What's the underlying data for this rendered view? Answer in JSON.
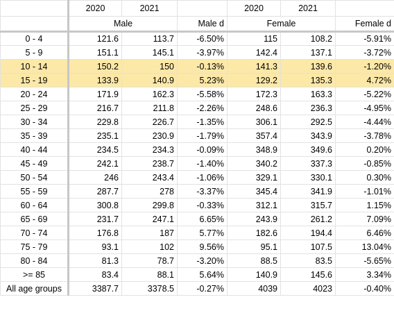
{
  "header_years": {
    "male_2020": "2020",
    "male_2021": "2021",
    "female_2020": "2020",
    "female_2021": "2021"
  },
  "header_groups": {
    "male": "Male",
    "male_d": "Male d",
    "female": "Female",
    "female_d": "Female d"
  },
  "colors": {
    "highlight": "#fce8a7",
    "gridline": "#e2e2e2",
    "frozen_border": "#c7c7c7"
  },
  "rows": [
    {
      "label": "0 - 4",
      "m2020": "121.6",
      "m2021": "113.7",
      "md": "-6.50%",
      "f2020": "115",
      "f2021": "108.2",
      "fd": "-5.91%",
      "highlight": false
    },
    {
      "label": "5 - 9",
      "m2020": "151.1",
      "m2021": "145.1",
      "md": "-3.97%",
      "f2020": "142.4",
      "f2021": "137.1",
      "fd": "-3.72%",
      "highlight": false
    },
    {
      "label": "10 - 14",
      "m2020": "150.2",
      "m2021": "150",
      "md": "-0.13%",
      "f2020": "141.3",
      "f2021": "139.6",
      "fd": "-1.20%",
      "highlight": true
    },
    {
      "label": "15 - 19",
      "m2020": "133.9",
      "m2021": "140.9",
      "md": "5.23%",
      "f2020": "129.2",
      "f2021": "135.3",
      "fd": "4.72%",
      "highlight": true
    },
    {
      "label": "20 - 24",
      "m2020": "171.9",
      "m2021": "162.3",
      "md": "-5.58%",
      "f2020": "172.3",
      "f2021": "163.3",
      "fd": "-5.22%",
      "highlight": false
    },
    {
      "label": "25 - 29",
      "m2020": "216.7",
      "m2021": "211.8",
      "md": "-2.26%",
      "f2020": "248.6",
      "f2021": "236.3",
      "fd": "-4.95%",
      "highlight": false
    },
    {
      "label": "30 - 34",
      "m2020": "229.8",
      "m2021": "226.7",
      "md": "-1.35%",
      "f2020": "306.1",
      "f2021": "292.5",
      "fd": "-4.44%",
      "highlight": false
    },
    {
      "label": "35 - 39",
      "m2020": "235.1",
      "m2021": "230.9",
      "md": "-1.79%",
      "f2020": "357.4",
      "f2021": "343.9",
      "fd": "-3.78%",
      "highlight": false
    },
    {
      "label": "40 - 44",
      "m2020": "234.5",
      "m2021": "234.3",
      "md": "-0.09%",
      "f2020": "348.9",
      "f2021": "349.6",
      "fd": "0.20%",
      "highlight": false
    },
    {
      "label": "45 - 49",
      "m2020": "242.1",
      "m2021": "238.7",
      "md": "-1.40%",
      "f2020": "340.2",
      "f2021": "337.3",
      "fd": "-0.85%",
      "highlight": false
    },
    {
      "label": "50 - 54",
      "m2020": "246",
      "m2021": "243.4",
      "md": "-1.06%",
      "f2020": "329.1",
      "f2021": "330.1",
      "fd": "0.30%",
      "highlight": false
    },
    {
      "label": "55 - 59",
      "m2020": "287.7",
      "m2021": "278",
      "md": "-3.37%",
      "f2020": "345.4",
      "f2021": "341.9",
      "fd": "-1.01%",
      "highlight": false
    },
    {
      "label": "60 - 64",
      "m2020": "300.8",
      "m2021": "299.8",
      "md": "-0.33%",
      "f2020": "312.1",
      "f2021": "315.7",
      "fd": "1.15%",
      "highlight": false
    },
    {
      "label": "65 - 69",
      "m2020": "231.7",
      "m2021": "247.1",
      "md": "6.65%",
      "f2020": "243.9",
      "f2021": "261.2",
      "fd": "7.09%",
      "highlight": false
    },
    {
      "label": "70 - 74",
      "m2020": "176.8",
      "m2021": "187",
      "md": "5.77%",
      "f2020": "182.6",
      "f2021": "194.4",
      "fd": "6.46%",
      "highlight": false
    },
    {
      "label": "75 - 79",
      "m2020": "93.1",
      "m2021": "102",
      "md": "9.56%",
      "f2020": "95.1",
      "f2021": "107.5",
      "fd": "13.04%",
      "highlight": false
    },
    {
      "label": "80 - 84",
      "m2020": "81.3",
      "m2021": "78.7",
      "md": "-3.20%",
      "f2020": "88.5",
      "f2021": "83.5",
      "fd": "-5.65%",
      "highlight": false
    },
    {
      "label": ">= 85",
      "m2020": "83.4",
      "m2021": "88.1",
      "md": "5.64%",
      "f2020": "140.9",
      "f2021": "145.6",
      "fd": "3.34%",
      "highlight": false
    },
    {
      "label": "All age groups",
      "m2020": "3387.7",
      "m2021": "3378.5",
      "md": "-0.27%",
      "f2020": "4039",
      "f2021": "4023",
      "fd": "-0.40%",
      "highlight": false
    }
  ]
}
